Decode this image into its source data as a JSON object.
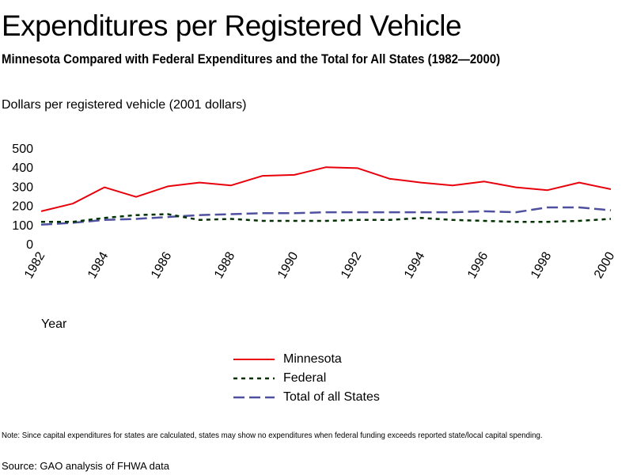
{
  "header": {
    "title": "Expenditures per Registered Vehicle",
    "subtitle": "Minnesota Compared with Federal Expenditures and the Total for All States (1982—2000)",
    "unit_label": "Dollars per registered vehicle (2001 dollars)"
  },
  "footer": {
    "note": "Note:  Since capital expenditures for states are calculated, states may show no expenditures when federal funding exceeds reported state/local capital spending.",
    "source": "Source: GAO analysis of FHWA data"
  },
  "chart_data": {
    "type": "line",
    "title": "Expenditures per Registered Vehicle",
    "xlabel": "Year",
    "ylabel": "Dollars per registered vehicle (2001 dollars)",
    "x": [
      1982,
      1983,
      1984,
      1985,
      1986,
      1987,
      1988,
      1989,
      1990,
      1991,
      1992,
      1993,
      1994,
      1995,
      1996,
      1997,
      1998,
      1999,
      2000
    ],
    "xticks": [
      "1982",
      "1984",
      "1986",
      "1988",
      "1990",
      "1992",
      "1994",
      "1996",
      "1998",
      "2000"
    ],
    "yticks": [
      "0",
      "100",
      "200",
      "300",
      "400",
      "500"
    ],
    "ylim": [
      0,
      500
    ],
    "xlim": [
      1982,
      2000
    ],
    "grid": false,
    "legend_position": "bottom-center",
    "series": [
      {
        "name": "Minnesota",
        "color": "#e8000b",
        "style": "solid",
        "values": [
          170,
          210,
          295,
          245,
          300,
          320,
          305,
          355,
          360,
          400,
          395,
          340,
          320,
          305,
          325,
          295,
          280,
          320,
          285
        ]
      },
      {
        "name": "Federal",
        "color": "#003300",
        "style": "dotted",
        "values": [
          115,
          115,
          135,
          150,
          155,
          125,
          130,
          120,
          120,
          120,
          125,
          125,
          135,
          125,
          120,
          115,
          115,
          120,
          130
        ]
      },
      {
        "name": "Total of all States",
        "color": "#5050a0",
        "style": "dashed",
        "values": [
          100,
          110,
          125,
          130,
          140,
          150,
          155,
          160,
          160,
          165,
          165,
          165,
          165,
          165,
          170,
          165,
          190,
          190,
          175
        ]
      }
    ]
  }
}
